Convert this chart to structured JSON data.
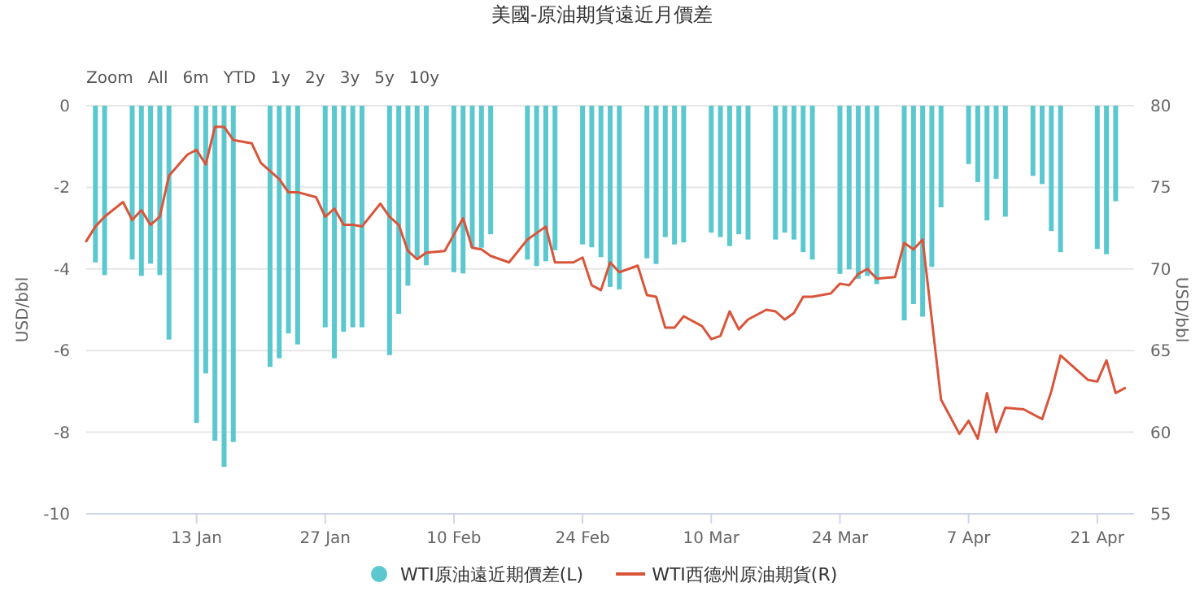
{
  "chart_data": {
    "type": "bar",
    "title": "美國-原油期貨遠近月價差",
    "ylabel": "USD/bbl",
    "y2label": "USD/bbl",
    "annotations": [
      "Zoom",
      "All",
      "6m",
      "YTD",
      "1y",
      "2y",
      "3y",
      "5y",
      "10y"
    ],
    "xlim": [
      "--01-01",
      "--04-25"
    ],
    "xticks": [
      {
        "value": "--01-13",
        "label": "13 Jan"
      },
      {
        "value": "--01-27",
        "label": "27 Jan"
      },
      {
        "value": "--02-10",
        "label": "10 Feb"
      },
      {
        "value": "--02-24",
        "label": "24 Feb"
      },
      {
        "value": "--03-10",
        "label": "10 Mar"
      },
      {
        "value": "--03-24",
        "label": "24 Mar"
      },
      {
        "value": "--04-07",
        "label": "7 Apr"
      },
      {
        "value": "--04-21",
        "label": "21 Apr"
      }
    ],
    "ylim": [
      -10,
      0
    ],
    "yticks": [
      -10,
      -8,
      -6,
      -4,
      -2,
      0
    ],
    "y2lim": [
      55,
      80
    ],
    "y2ticks": [
      55,
      60,
      65,
      70,
      75,
      80
    ],
    "grid": "y",
    "legend": "bottom",
    "series": [
      {
        "name": "WTI原油遠近期價差(L)",
        "color": "#5bc8d0",
        "x": [
          "--01-02",
          "--01-03",
          "--01-06",
          "--01-07",
          "--01-08",
          "--01-09",
          "--01-10",
          "--01-13",
          "--01-14",
          "--01-15",
          "--01-16",
          "--01-17",
          "--01-21",
          "--01-22",
          "--01-23",
          "--01-24",
          "--01-27",
          "--01-28",
          "--01-29",
          "--01-30",
          "--01-31",
          "--02-03",
          "--02-04",
          "--02-05",
          "--02-06",
          "--02-07",
          "--02-10",
          "--02-11",
          "--02-12",
          "--02-13",
          "--02-14",
          "--02-18",
          "--02-19",
          "--02-20",
          "--02-21",
          "--02-24",
          "--02-25",
          "--02-26",
          "--02-27",
          "--02-28",
          "--03-03",
          "--03-04",
          "--03-05",
          "--03-06",
          "--03-07",
          "--03-10",
          "--03-11",
          "--03-12",
          "--03-13",
          "--03-14",
          "--03-17",
          "--03-18",
          "--03-19",
          "--03-20",
          "--03-21",
          "--03-24",
          "--03-25",
          "--03-26",
          "--03-27",
          "--03-28",
          "--03-31",
          "--04-01",
          "--04-02",
          "--04-03",
          "--04-04",
          "--04-07",
          "--04-08",
          "--04-09",
          "--04-10",
          "--04-11",
          "--04-14",
          "--04-15",
          "--04-16",
          "--04-17",
          "--04-21",
          "--04-22",
          "--04-23"
        ],
        "values": [
          -3.84,
          -4.15,
          -3.77,
          -4.17,
          -3.87,
          -4.15,
          -5.73,
          -7.77,
          -6.56,
          -8.21,
          -8.85,
          -8.24,
          -6.4,
          -6.19,
          -5.58,
          -5.85,
          -5.43,
          -6.19,
          -5.54,
          -5.43,
          -5.43,
          -6.11,
          -5.1,
          -4.41,
          -3.75,
          -3.91,
          -4.08,
          -4.11,
          -3.48,
          -3.48,
          -3.15,
          -3.77,
          -3.93,
          -3.81,
          -3.54,
          -3.4,
          -3.47,
          -3.71,
          -4.44,
          -4.5,
          -3.74,
          -3.88,
          -3.22,
          -3.4,
          -3.35,
          -3.11,
          -3.22,
          -3.44,
          -3.15,
          -3.28,
          -3.28,
          -3.11,
          -3.28,
          -3.59,
          -3.77,
          -4.12,
          -4.01,
          -4.24,
          -4.17,
          -4.37,
          -5.26,
          -4.86,
          -5.17,
          -3.95,
          -2.49,
          -1.43,
          -1.87,
          -2.81,
          -1.79,
          -2.72,
          -1.72,
          -1.92,
          -3.07,
          -3.59,
          -3.51,
          -3.64,
          -2.34
        ]
      },
      {
        "name": "WTI西德州原油期貨(R)",
        "type": "line",
        "axis": "y2",
        "color": "#d9553a",
        "x": [
          "--01-01",
          "--01-02",
          "--01-03",
          "--01-05",
          "--01-06",
          "--01-07",
          "--01-08",
          "--01-09",
          "--01-10",
          "--01-12",
          "--01-13",
          "--01-14",
          "--01-15",
          "--01-16",
          "--01-17",
          "--01-19",
          "--01-20",
          "--01-21",
          "--01-22",
          "--01-23",
          "--01-24",
          "--01-26",
          "--01-27",
          "--01-28",
          "--01-29",
          "--01-30",
          "--01-31",
          "--02-02",
          "--02-03",
          "--02-04",
          "--02-05",
          "--02-06",
          "--02-07",
          "--02-09",
          "--02-10",
          "--02-11",
          "--02-12",
          "--02-13",
          "--02-14",
          "--02-16",
          "--02-18",
          "--02-19",
          "--02-20",
          "--02-21",
          "--02-23",
          "--02-24",
          "--02-25",
          "--02-26",
          "--02-27",
          "--02-28",
          "--03-02",
          "--03-03",
          "--03-04",
          "--03-05",
          "--03-06",
          "--03-07",
          "--03-09",
          "--03-10",
          "--03-11",
          "--03-12",
          "--03-13",
          "--03-14",
          "--03-16",
          "--03-17",
          "--03-18",
          "--03-19",
          "--03-20",
          "--03-21",
          "--03-23",
          "--03-24",
          "--03-25",
          "--03-26",
          "--03-27",
          "--03-28",
          "--03-30",
          "--03-31",
          "--04-01",
          "--04-02",
          "--04-04",
          "--04-06",
          "--04-07",
          "--04-08",
          "--04-09",
          "--04-10",
          "--04-11",
          "--04-13",
          "--04-15",
          "--04-16",
          "--04-17",
          "--04-20",
          "--04-21",
          "--04-22",
          "--04-23",
          "--04-24"
        ],
        "values": [
          71.7,
          72.6,
          73.2,
          74.1,
          73.0,
          73.6,
          72.7,
          73.2,
          75.7,
          77.0,
          77.3,
          76.4,
          78.7,
          78.7,
          77.9,
          77.7,
          76.5,
          76.0,
          75.5,
          74.7,
          74.7,
          74.4,
          73.2,
          73.7,
          72.7,
          72.7,
          72.6,
          74.0,
          73.2,
          72.7,
          71.1,
          70.6,
          71.0,
          71.1,
          72.1,
          73.1,
          71.3,
          71.2,
          70.8,
          70.4,
          71.8,
          72.2,
          72.6,
          70.4,
          70.4,
          70.7,
          69.0,
          68.7,
          70.4,
          69.8,
          70.2,
          68.4,
          68.3,
          66.4,
          66.4,
          67.1,
          66.5,
          65.7,
          65.9,
          67.4,
          66.3,
          66.9,
          67.5,
          67.4,
          66.9,
          67.3,
          68.3,
          68.3,
          68.5,
          69.1,
          69.0,
          69.7,
          70.0,
          69.4,
          69.5,
          71.6,
          71.2,
          71.8,
          62.0,
          59.9,
          60.7,
          59.6,
          62.4,
          60.0,
          61.5,
          61.4,
          60.8,
          62.5,
          64.7,
          63.2,
          63.1,
          64.4,
          62.4,
          62.7
        ]
      }
    ]
  }
}
